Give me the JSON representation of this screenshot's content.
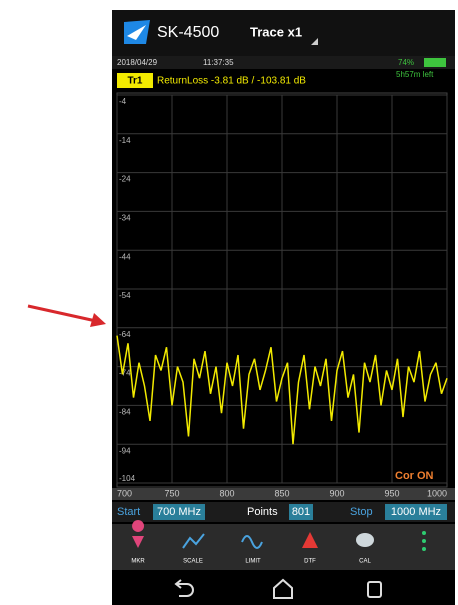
{
  "header": {
    "app_name": "SK-4500",
    "trace_mode": "Trace x1"
  },
  "status": {
    "date": "2018/04/29",
    "time": "11:37:35",
    "battery": "74%",
    "battery_left": "5h57m left"
  },
  "chart_data": {
    "type": "line",
    "title": "ReturnLoss -3.81 dB / -103.81 dB",
    "x": [
      700,
      705,
      710,
      715,
      720,
      725,
      730,
      735,
      740,
      745,
      750,
      755,
      760,
      765,
      770,
      775,
      780,
      785,
      790,
      795,
      800,
      805,
      810,
      815,
      820,
      825,
      830,
      835,
      840,
      845,
      850,
      855,
      860,
      865,
      870,
      875,
      880,
      885,
      890,
      895,
      900,
      905,
      910,
      915,
      920,
      925,
      930,
      935,
      940,
      945,
      950,
      955,
      960,
      965,
      970,
      975,
      980,
      985,
      990,
      995,
      1000
    ],
    "series": [
      {
        "name": "Tr1",
        "color": "#f2ea00",
        "values": [
          -66,
          -76,
          -68,
          -82,
          -73,
          -79,
          -88,
          -71,
          -75,
          -69,
          -84,
          -74,
          -78,
          -92,
          -72,
          -77,
          -70,
          -81,
          -74,
          -86,
          -73,
          -79,
          -71,
          -90,
          -76,
          -72,
          -80,
          -75,
          -69,
          -83,
          -77,
          -73,
          -94,
          -78,
          -71,
          -85,
          -74,
          -79,
          -72,
          -88,
          -75,
          -70,
          -82,
          -76,
          -91,
          -73,
          -78,
          -71,
          -84,
          -75,
          -80,
          -72,
          -87,
          -74,
          -78,
          -70,
          -83,
          -76,
          -73,
          -81,
          -77
        ]
      }
    ],
    "xlim": [
      700,
      1000
    ],
    "xticks": [
      700,
      750,
      800,
      850,
      900,
      950,
      1000
    ],
    "ylim": [
      -104,
      -4
    ],
    "yticks": [
      -4,
      -14,
      -24,
      -34,
      -44,
      -54,
      -64,
      -74,
      -84,
      -94,
      -104
    ],
    "grid": true,
    "annotation": "Cor ON"
  },
  "footer": {
    "start_label": "Start",
    "start_value": "700 MHz",
    "points_label": "Points",
    "points_value": "801",
    "stop_label": "Stop",
    "stop_value": "1000 MHz"
  },
  "toolbar": {
    "items": [
      "MKR",
      "SCALE",
      "LIMIT",
      "DTF",
      "CAL"
    ]
  }
}
